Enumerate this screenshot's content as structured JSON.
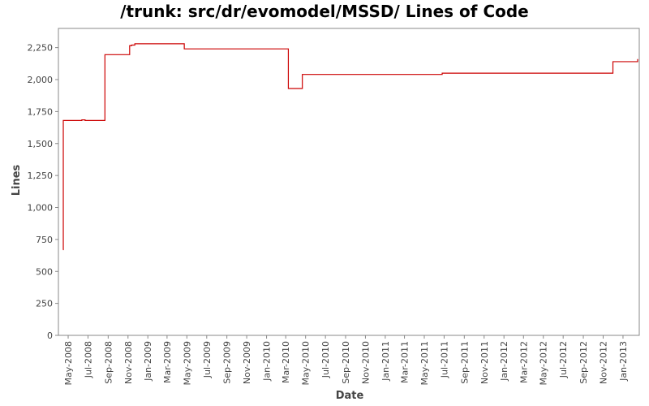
{
  "chart_data": {
    "type": "line",
    "title": "/trunk: src/dr/evomodel/MSSD/ Lines of Code",
    "xlabel": "Date",
    "ylabel": "Lines",
    "xlim": [
      "2008-04-01",
      "2013-02-20"
    ],
    "ylim": [
      0,
      2400
    ],
    "y_ticks": [
      0,
      250,
      500,
      750,
      1000,
      1250,
      1500,
      1750,
      2000,
      2250
    ],
    "y_tick_labels": [
      "0",
      "250",
      "500",
      "750",
      "1,000",
      "1,250",
      "1,500",
      "1,750",
      "2,000",
      "2,250"
    ],
    "x_ticks": [
      "2008-05-01",
      "2008-07-01",
      "2008-09-01",
      "2008-11-01",
      "2009-01-01",
      "2009-03-01",
      "2009-05-01",
      "2009-07-01",
      "2009-09-01",
      "2009-11-01",
      "2010-01-01",
      "2010-03-01",
      "2010-05-01",
      "2010-07-01",
      "2010-09-01",
      "2010-11-01",
      "2011-01-01",
      "2011-03-01",
      "2011-05-01",
      "2011-07-01",
      "2011-09-01",
      "2011-11-01",
      "2012-01-01",
      "2012-03-01",
      "2012-05-01",
      "2012-07-01",
      "2012-09-01",
      "2012-11-01",
      "2013-01-01"
    ],
    "x_tick_labels": [
      "May-2008",
      "Jul-2008",
      "Sep-2008",
      "Nov-2008",
      "Jan-2009",
      "Mar-2009",
      "May-2009",
      "Jul-2009",
      "Sep-2009",
      "Nov-2009",
      "Jan-2010",
      "Mar-2010",
      "May-2010",
      "Jul-2010",
      "Sep-2010",
      "Nov-2010",
      "Jan-2011",
      "Mar-2011",
      "May-2011",
      "Jul-2011",
      "Sep-2011",
      "Nov-2011",
      "Jan-2012",
      "Mar-2012",
      "May-2012",
      "Jul-2012",
      "Sep-2012",
      "Nov-2012",
      "Jan-2013"
    ],
    "grid": false,
    "legend": "none",
    "step": true,
    "series": [
      {
        "color": "#cc0000",
        "x": [
          "2008-04-15",
          "2008-04-16",
          "2008-06-12",
          "2008-06-22",
          "2008-08-22",
          "2008-11-06",
          "2008-11-12",
          "2008-11-22",
          "2009-04-23",
          "2010-03-09",
          "2010-04-21",
          "2011-06-25",
          "2012-12-01",
          "2013-02-14",
          "2013-02-15"
        ],
        "y": [
          670,
          1680,
          1685,
          1680,
          2195,
          2265,
          2270,
          2280,
          2240,
          1930,
          2040,
          2050,
          2140,
          2140,
          2160
        ]
      }
    ]
  }
}
